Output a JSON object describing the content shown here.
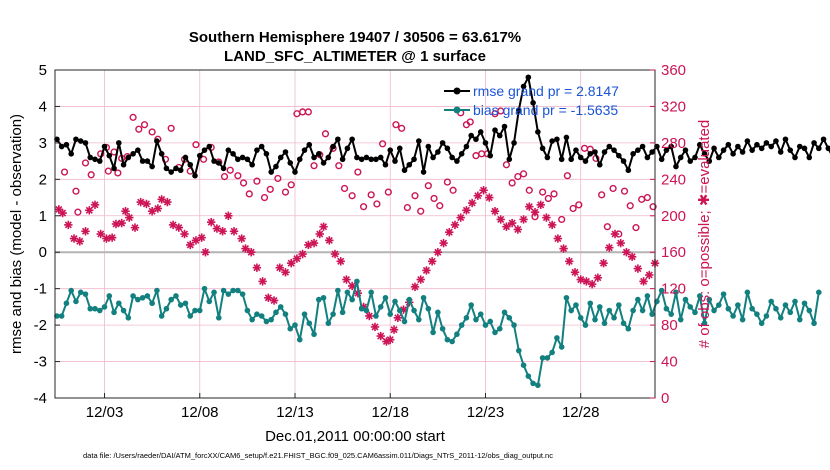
{
  "chart_data": {
    "type": "line",
    "title": "Southern Hemisphere 19407 / 30506 = 63.617%",
    "subtitle": "LAND_SFC_ALTIMETER @ 1 surface",
    "xlabel": "Dec.01,2011 00:00:00 start",
    "ylabel_left": "rmse and bias (model - observation)",
    "ylabel_right": "# of obs: o=possible; ✱=evaluated",
    "footer": "data file: /Users/raeder/DAI/ATM_forcXX/CAM6_setup/f.e21.FHIST_BGC.f09_025.CAM6assim.011/Diags_NTrS_2011-12/obs_diag_output.nc",
    "xlim": [
      0.4,
      31.9
    ],
    "x_tick_labels": [
      "12/03",
      "12/08",
      "12/13",
      "12/18",
      "12/23",
      "12/28"
    ],
    "x_tick_positions": [
      3,
      8,
      13,
      18,
      23,
      28
    ],
    "ylim_left": [
      -4,
      5
    ],
    "y_ticks_left": [
      "-4",
      "-3",
      "-2",
      "-1",
      "0",
      "1",
      "2",
      "3",
      "4",
      "5"
    ],
    "ylim_right": [
      0,
      360
    ],
    "y_ticks_right": [
      "0",
      "40",
      "80",
      "120",
      "160",
      "200",
      "240",
      "280",
      "320",
      "360"
    ],
    "grid": true,
    "legend_position": "top-right",
    "legend": [
      {
        "label": "rmse grand pr = 2.8147",
        "color": "#000000"
      },
      {
        "label": "bias grand pr = -1.5635",
        "color": "#138080"
      }
    ],
    "colors": {
      "rmse": "#000000",
      "bias": "#138080",
      "obs": "#cc1456",
      "zero_line": "#b4b4b4",
      "grid": "#f0b8cc",
      "left_axis": "#000000",
      "right_axis": "#cc1456",
      "legend_text": "#1a55d6"
    },
    "x_start": 0.5,
    "x_step": 0.25,
    "series": [
      {
        "name": "rmse",
        "values": [
          3.1,
          2.9,
          2.95,
          2.7,
          3.1,
          3.05,
          3.0,
          2.6,
          2.55,
          2.5,
          2.9,
          2.65,
          2.3,
          3.0,
          2.4,
          2.6,
          2.7,
          2.8,
          2.5,
          2.5,
          2.35,
          3.05,
          2.7,
          2.3,
          2.2,
          2.3,
          2.25,
          2.6,
          2.4,
          2.1,
          2.65,
          2.8,
          2.9,
          2.5,
          2.45,
          2.3,
          2.8,
          2.7,
          2.55,
          2.6,
          2.55,
          2.4,
          2.8,
          2.9,
          2.7,
          2.2,
          2.35,
          2.6,
          2.75,
          2.45,
          2.2,
          2.55,
          2.8,
          2.95,
          2.6,
          2.7,
          2.45,
          2.6,
          2.9,
          3.1,
          2.55,
          2.85,
          3.1,
          2.6,
          2.55,
          2.6,
          2.55,
          2.55,
          2.6,
          2.4,
          2.8,
          2.5,
          2.85,
          2.25,
          2.4,
          2.55,
          3.05,
          2.2,
          2.9,
          2.6,
          2.75,
          3.0,
          2.85,
          2.6,
          2.5,
          2.7,
          2.9,
          3.2,
          3.1,
          3.3,
          3.0,
          2.65,
          3.35,
          3.2,
          3.45,
          2.55,
          3.0,
          3.9,
          4.55,
          4.8,
          4.1,
          3.3,
          2.85,
          2.6,
          3.05,
          3.1,
          2.55,
          3.15,
          2.55,
          2.8,
          2.6,
          2.5,
          2.7,
          2.75,
          2.4,
          2.75,
          2.9,
          2.8,
          2.65,
          2.5,
          2.25,
          2.7,
          2.8,
          2.9,
          2.6,
          2.75,
          2.9,
          2.55,
          2.8,
          2.9,
          2.35,
          2.6,
          2.8,
          2.5,
          2.6,
          2.95,
          2.7,
          2.5,
          2.85,
          2.6,
          2.8,
          2.95,
          2.7,
          2.9,
          2.75,
          3.05,
          2.8,
          2.95,
          2.85,
          3.0,
          2.9,
          3.05,
          2.75,
          3.1,
          2.8,
          2.6,
          2.9,
          2.85,
          2.6,
          3.0,
          2.85,
          3.1,
          2.85,
          2.6
        ]
      },
      {
        "name": "bias",
        "values": [
          -1.75,
          -1.75,
          -1.4,
          -1.05,
          -1.35,
          -1.1,
          -1.15,
          -1.55,
          -1.55,
          -1.6,
          -1.5,
          -1.2,
          -1.65,
          -1.4,
          -1.6,
          -1.8,
          -1.2,
          -1.3,
          -1.25,
          -1.2,
          -1.4,
          -1.05,
          -1.75,
          -1.55,
          -1.3,
          -1.2,
          -1.45,
          -1.4,
          -1.75,
          -1.6,
          -1.6,
          -1.0,
          -1.35,
          -1.1,
          -1.8,
          -1.05,
          -1.15,
          -1.05,
          -1.05,
          -1.15,
          -1.6,
          -1.85,
          -1.7,
          -1.75,
          -1.9,
          -1.85,
          -1.65,
          -1.5,
          -1.7,
          -2.1,
          -2.0,
          -2.4,
          -1.7,
          -1.95,
          -2.25,
          -1.3,
          -1.25,
          -1.95,
          -1.7,
          -1.05,
          -1.65,
          -1.1,
          -1.3,
          -0.8,
          -1.55,
          -1.6,
          -1.1,
          -1.75,
          -1.5,
          -1.25,
          -1.7,
          -1.35,
          -1.6,
          -1.9,
          -1.3,
          -1.6,
          -1.85,
          -1.25,
          -1.55,
          -2.2,
          -1.65,
          -2.1,
          -2.4,
          -2.45,
          -2.25,
          -2.0,
          -1.8,
          -1.45,
          -1.85,
          -1.7,
          -2.0,
          -1.9,
          -2.2,
          -2.1,
          -1.65,
          -1.8,
          -2.0,
          -2.7,
          -3.1,
          -3.4,
          -3.6,
          -3.65,
          -2.9,
          -2.9,
          -2.75,
          -2.35,
          -2.6,
          -1.25,
          -1.6,
          -1.45,
          -1.8,
          -2.0,
          -1.4,
          -1.85,
          -1.5,
          -1.95,
          -1.6,
          -1.8,
          -1.45,
          -1.95,
          -2.1,
          -1.6,
          -1.3,
          -1.6,
          -1.2,
          -1.7,
          -1.35,
          -1.05,
          -1.55,
          -1.7,
          -1.1,
          -1.85,
          -1.3,
          -1.5,
          -1.65,
          -1.2,
          -1.95,
          -1.3,
          -1.6,
          -1.45,
          -1.15,
          -1.55,
          -1.75,
          -1.45,
          -1.85,
          -1.1,
          -1.55,
          -1.7,
          -1.95,
          -1.75,
          -1.35,
          -1.55,
          -1.8,
          -1.45,
          -1.65,
          -1.35,
          -1.85,
          -1.4,
          -1.6,
          -1.95,
          -1.1
        ]
      }
    ],
    "obs_possible": [
      [
        0.9,
        248
      ],
      [
        1.5,
        227
      ],
      [
        1.6,
        204
      ],
      [
        2.0,
        258
      ],
      [
        2.3,
        245
      ],
      [
        2.8,
        268
      ],
      [
        3.1,
        275
      ],
      [
        3.2,
        249
      ],
      [
        3.5,
        270
      ],
      [
        3.7,
        247
      ],
      [
        3.9,
        263
      ],
      [
        4.2,
        265
      ],
      [
        4.5,
        308
      ],
      [
        4.8,
        295
      ],
      [
        5.1,
        300
      ],
      [
        5.5,
        292
      ],
      [
        5.8,
        284
      ],
      [
        6.2,
        262
      ],
      [
        6.5,
        296
      ],
      [
        6.9,
        253
      ],
      [
        7.2,
        262
      ],
      [
        7.5,
        249
      ],
      [
        7.8,
        278
      ],
      [
        8.2,
        262
      ],
      [
        8.6,
        275
      ],
      [
        9.0,
        259
      ],
      [
        9.3,
        243
      ],
      [
        9.6,
        250
      ],
      [
        10.0,
        244
      ],
      [
        10.3,
        236
      ],
      [
        10.6,
        224
      ],
      [
        11.0,
        238
      ],
      [
        11.4,
        220
      ],
      [
        11.7,
        229
      ],
      [
        12.1,
        241
      ],
      [
        12.5,
        226
      ],
      [
        12.8,
        234
      ],
      [
        13.1,
        312
      ],
      [
        13.4,
        314
      ],
      [
        13.7,
        314
      ],
      [
        14.0,
        255
      ],
      [
        14.3,
        267
      ],
      [
        14.6,
        290
      ],
      [
        15.0,
        274
      ],
      [
        15.3,
        255
      ],
      [
        15.6,
        230
      ],
      [
        16.0,
        222
      ],
      [
        16.3,
        248
      ],
      [
        16.6,
        210
      ],
      [
        17.0,
        223
      ],
      [
        17.3,
        213
      ],
      [
        17.6,
        279
      ],
      [
        17.9,
        226
      ],
      [
        18.3,
        300
      ],
      [
        18.6,
        296
      ],
      [
        18.9,
        209
      ],
      [
        19.3,
        222
      ],
      [
        19.6,
        205
      ],
      [
        20.0,
        233
      ],
      [
        20.3,
        219
      ],
      [
        20.6,
        211
      ],
      [
        21.0,
        237
      ],
      [
        21.3,
        228
      ],
      [
        21.7,
        313
      ],
      [
        22.0,
        300
      ],
      [
        22.2,
        303
      ],
      [
        22.5,
        266
      ],
      [
        22.8,
        268
      ],
      [
        23.1,
        268
      ],
      [
        23.5,
        312
      ],
      [
        23.8,
        315
      ],
      [
        24.1,
        256
      ],
      [
        24.4,
        236
      ],
      [
        24.7,
        243
      ],
      [
        25.0,
        246
      ],
      [
        25.3,
        228
      ],
      [
        25.6,
        199
      ],
      [
        26.0,
        226
      ],
      [
        26.3,
        219
      ],
      [
        26.6,
        224
      ],
      [
        27.0,
        196
      ],
      [
        27.3,
        244
      ],
      [
        27.6,
        208
      ],
      [
        27.9,
        212
      ],
      [
        28.2,
        274
      ],
      [
        28.5,
        273
      ],
      [
        28.8,
        263
      ],
      [
        29.1,
        223
      ],
      [
        29.4,
        188
      ],
      [
        29.7,
        230
      ],
      [
        30.0,
        180
      ],
      [
        30.3,
        227
      ],
      [
        30.6,
        211
      ],
      [
        30.9,
        187
      ],
      [
        31.2,
        218
      ],
      [
        31.5,
        220
      ],
      [
        31.8,
        210
      ]
    ],
    "obs_evaluated": [
      [
        0.6,
        207
      ],
      [
        0.8,
        203
      ],
      [
        1.1,
        190
      ],
      [
        1.4,
        175
      ],
      [
        1.7,
        172
      ],
      [
        2.0,
        183
      ],
      [
        2.2,
        206
      ],
      [
        2.5,
        212
      ],
      [
        2.8,
        180
      ],
      [
        3.1,
        175
      ],
      [
        3.4,
        176
      ],
      [
        3.6,
        191
      ],
      [
        3.9,
        192
      ],
      [
        4.1,
        205
      ],
      [
        4.3,
        198
      ],
      [
        4.6,
        187
      ],
      [
        4.9,
        215
      ],
      [
        5.2,
        213
      ],
      [
        5.5,
        205
      ],
      [
        5.8,
        208
      ],
      [
        6.0,
        218
      ],
      [
        6.3,
        215
      ],
      [
        6.6,
        190
      ],
      [
        6.9,
        187
      ],
      [
        7.2,
        180
      ],
      [
        7.5,
        168
      ],
      [
        7.8,
        173
      ],
      [
        8.1,
        176
      ],
      [
        8.3,
        160
      ],
      [
        8.6,
        193
      ],
      [
        8.9,
        186
      ],
      [
        9.2,
        183
      ],
      [
        9.5,
        200
      ],
      [
        9.8,
        183
      ],
      [
        10.2,
        175
      ],
      [
        10.4,
        164
      ],
      [
        10.7,
        160
      ],
      [
        11.0,
        143
      ],
      [
        11.3,
        128
      ],
      [
        11.6,
        110
      ],
      [
        11.9,
        107
      ],
      [
        12.2,
        143
      ],
      [
        12.5,
        138
      ],
      [
        12.8,
        148
      ],
      [
        13.1,
        153
      ],
      [
        13.4,
        158
      ],
      [
        13.7,
        168
      ],
      [
        14.0,
        170
      ],
      [
        14.3,
        180
      ],
      [
        14.5,
        188
      ],
      [
        14.8,
        173
      ],
      [
        15.1,
        158
      ],
      [
        15.4,
        150
      ],
      [
        15.7,
        130
      ],
      [
        16.0,
        123
      ],
      [
        16.3,
        115
      ],
      [
        16.6,
        100
      ],
      [
        16.9,
        90
      ],
      [
        17.2,
        78
      ],
      [
        17.5,
        68
      ],
      [
        17.8,
        62
      ],
      [
        18.0,
        64
      ],
      [
        18.2,
        75
      ],
      [
        18.4,
        88
      ],
      [
        18.7,
        97
      ],
      [
        19.0,
        105
      ],
      [
        19.3,
        122
      ],
      [
        19.6,
        130
      ],
      [
        19.9,
        140
      ],
      [
        20.2,
        150
      ],
      [
        20.5,
        160
      ],
      [
        20.8,
        170
      ],
      [
        21.1,
        182
      ],
      [
        21.4,
        190
      ],
      [
        21.7,
        198
      ],
      [
        22.0,
        206
      ],
      [
        22.3,
        214
      ],
      [
        22.6,
        222
      ],
      [
        22.9,
        228
      ],
      [
        23.2,
        220
      ],
      [
        23.5,
        205
      ],
      [
        23.8,
        196
      ],
      [
        24.1,
        188
      ],
      [
        24.4,
        192
      ],
      [
        24.7,
        185
      ],
      [
        25.0,
        196
      ],
      [
        25.3,
        210
      ],
      [
        25.6,
        204
      ],
      [
        25.9,
        212
      ],
      [
        26.2,
        198
      ],
      [
        26.5,
        190
      ],
      [
        26.8,
        175
      ],
      [
        27.1,
        164
      ],
      [
        27.4,
        150
      ],
      [
        27.7,
        138
      ],
      [
        28.0,
        130
      ],
      [
        28.3,
        128
      ],
      [
        28.6,
        125
      ],
      [
        28.9,
        132
      ],
      [
        29.2,
        148
      ],
      [
        29.5,
        165
      ],
      [
        29.8,
        180
      ],
      [
        30.1,
        170
      ],
      [
        30.4,
        160
      ],
      [
        30.7,
        155
      ],
      [
        31.0,
        142
      ],
      [
        31.3,
        128
      ],
      [
        31.6,
        135
      ],
      [
        31.9,
        148
      ]
    ]
  }
}
